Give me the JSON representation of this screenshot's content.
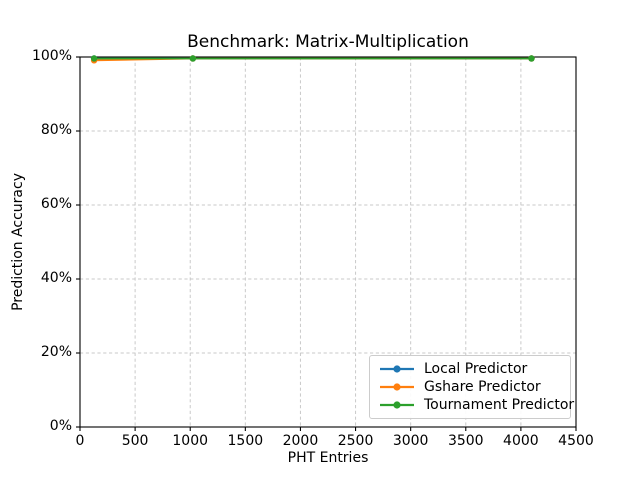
{
  "chart_data": {
    "type": "line",
    "title": "Benchmark: Matrix-Multiplication",
    "xlabel": "PHT Entries",
    "ylabel": "Prediction Accuracy",
    "xlim": [
      0,
      4500
    ],
    "ylim": [
      0,
      100
    ],
    "x_ticks": [
      0,
      500,
      1000,
      1500,
      2000,
      2500,
      3000,
      3500,
      4000,
      4500
    ],
    "y_ticks": [
      0,
      20,
      40,
      60,
      80,
      100
    ],
    "y_tick_suffix": "%",
    "grid": true,
    "grid_style": "dashed",
    "grid_color": "#c9c9c9",
    "legend_position": "lower right",
    "marker": "circle",
    "x": [
      128,
      1024,
      4096
    ],
    "series": [
      {
        "name": "Local Predictor",
        "color": "#1f77b4",
        "values": [
          99.6,
          99.6,
          99.6
        ]
      },
      {
        "name": "Gshare Predictor",
        "color": "#ff7f0e",
        "values": [
          99.1,
          99.6,
          99.6
        ]
      },
      {
        "name": "Tournament Predictor",
        "color": "#2ca02c",
        "values": [
          99.6,
          99.6,
          99.6
        ]
      }
    ]
  }
}
